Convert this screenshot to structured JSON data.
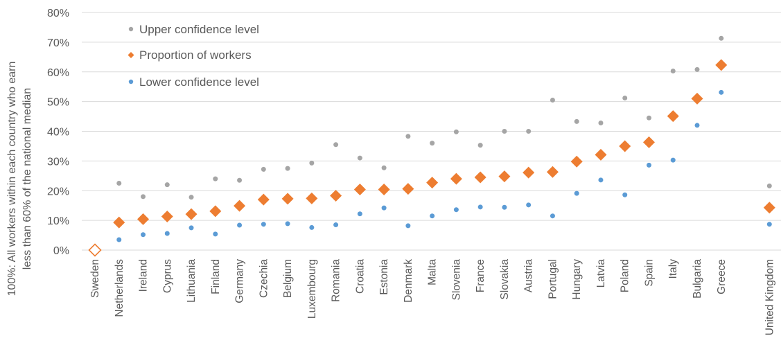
{
  "chart_data": {
    "type": "scatter",
    "title": "",
    "ylabel": "100%: All workers within each country who earn less than 60% of the national median",
    "ylabel_lines": [
      "100%: All workers within each country who earn",
      "less than 60% of the national median"
    ],
    "ylim": [
      0,
      80
    ],
    "y_ticks": [
      "0%",
      "10%",
      "20%",
      "30%",
      "40%",
      "50%",
      "60%",
      "70%",
      "80%"
    ],
    "grid": true,
    "legend_position": "top-left",
    "categories": [
      "Sweden",
      "Netherlands",
      "Ireland",
      "Cyprus",
      "Lithuania",
      "Finland",
      "Germany",
      "Czechia",
      "Belgium",
      "Luxembourg",
      "Romania",
      "Croatia",
      "Estonia",
      "Denmark",
      "Malta",
      "Slovenia",
      "France",
      "Slovakia",
      "Austria",
      "Portugal",
      "Hungary",
      "Latvia",
      "Poland",
      "Spain",
      "Italy",
      "Bulgaria",
      "Greece",
      "United Kingdom"
    ],
    "series": [
      {
        "name": "Upper confidence level",
        "color": "#A5A5A5",
        "marker": "circle",
        "values": [
          0,
          22.5,
          18,
          22,
          17.8,
          24,
          23.5,
          27.2,
          27.5,
          29.3,
          35.5,
          31,
          27.7,
          38.3,
          36,
          39.8,
          35.3,
          40,
          40,
          50.5,
          43.3,
          42.8,
          51.2,
          44.5,
          60.3,
          60.8,
          71.3,
          21.6
        ]
      },
      {
        "name": "Proportion of workers",
        "color": "#ED7D31",
        "marker": "diamond",
        "values": [
          0,
          9.3,
          10.4,
          11.3,
          12.1,
          13.1,
          14.9,
          17,
          17.3,
          17.4,
          18.3,
          20.4,
          20.4,
          20.6,
          22.7,
          24,
          24.5,
          24.8,
          26.1,
          26.3,
          29.8,
          32.1,
          35,
          36.3,
          45.1,
          51,
          62.3,
          14.3
        ]
      },
      {
        "name": "Lower confidence level",
        "color": "#5B9BD5",
        "marker": "circle",
        "values": [
          0,
          3.5,
          5.2,
          5.6,
          7.5,
          5.4,
          8.4,
          8.7,
          8.9,
          7.6,
          8.5,
          12.2,
          14.2,
          8.2,
          11.5,
          13.6,
          14.5,
          14.4,
          15.2,
          11.5,
          19.1,
          23.6,
          18.6,
          28.6,
          30.3,
          42,
          53.1,
          8.7
        ]
      }
    ]
  },
  "legend": {
    "items": [
      "Upper confidence level",
      "Proportion of workers",
      "Lower confidence level"
    ]
  }
}
